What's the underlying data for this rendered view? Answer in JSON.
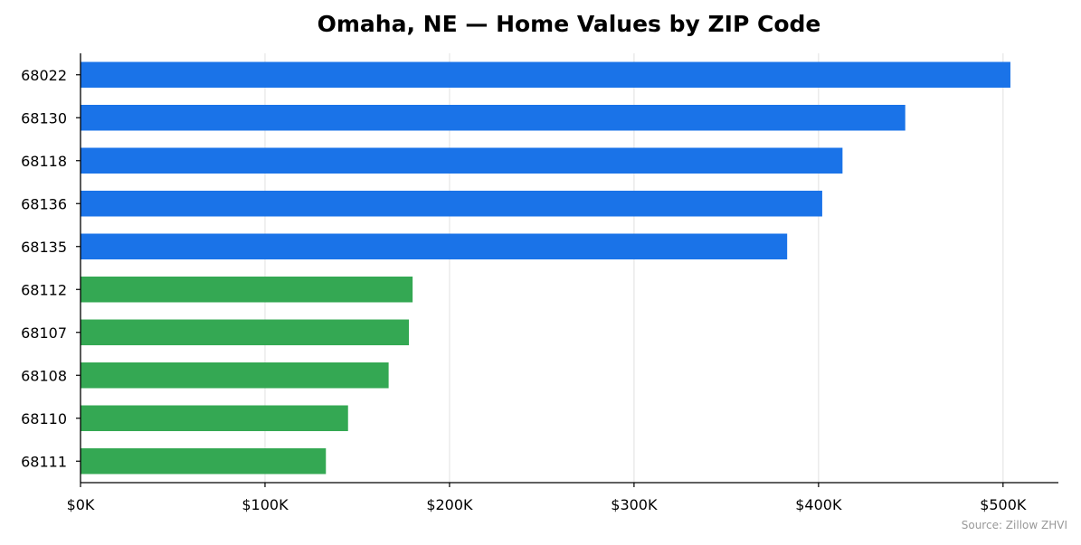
{
  "chart_data": {
    "type": "bar",
    "orientation": "horizontal",
    "title": "Omaha, NE — Home Values by ZIP Code",
    "xlabel": "",
    "ylabel": "",
    "categories": [
      "68022",
      "68130",
      "68118",
      "68136",
      "68135",
      "68112",
      "68107",
      "68108",
      "68110",
      "68111"
    ],
    "values": [
      504000,
      447000,
      413000,
      402000,
      383000,
      180000,
      178000,
      167000,
      145000,
      133000
    ],
    "bar_colors": [
      "#1a73e8",
      "#1a73e8",
      "#1a73e8",
      "#1a73e8",
      "#1a73e8",
      "#34a853",
      "#34a853",
      "#34a853",
      "#34a853",
      "#34a853"
    ],
    "xlim": [
      0,
      530000
    ],
    "xticks": [
      0,
      100000,
      200000,
      300000,
      400000,
      500000
    ],
    "xtick_labels": [
      "$0K",
      "$100K",
      "$200K",
      "$300K",
      "$400K",
      "$500K"
    ],
    "grid": "vertical",
    "legend": "none",
    "source_note": "Source: Zillow ZHVI"
  }
}
